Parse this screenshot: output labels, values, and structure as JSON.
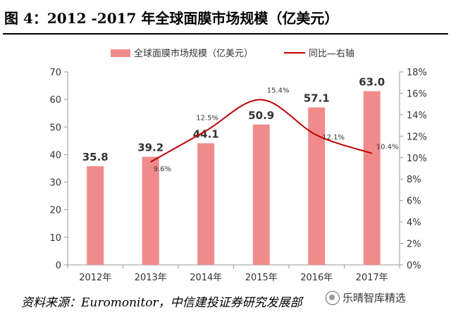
{
  "figure": {
    "title": "图 4：2012 -2017 年全球面膜市场规模（亿美元）",
    "source": "资料来源：Euromonitor，中信建投证券研究发展部",
    "watermark": "乐晴智库精选"
  },
  "chart_data": {
    "type": "bar",
    "categories": [
      "2012年",
      "2013年",
      "2014年",
      "2015年",
      "2016年",
      "2017年"
    ],
    "series": [
      {
        "name": "全球面膜市场规模（亿美元）",
        "type": "bar",
        "axis": "left",
        "color": "#f18b8b",
        "values": [
          35.8,
          39.2,
          44.1,
          50.9,
          57.1,
          63.0
        ],
        "labels": [
          "35.8",
          "39.2",
          "44.1",
          "50.9",
          "57.1",
          "63.0"
        ]
      },
      {
        "name": "同比—右轴",
        "type": "line",
        "axis": "right",
        "color": "#c00000",
        "x": [
          "2013年",
          "2014年",
          "2015年",
          "2016年",
          "2017年"
        ],
        "values": [
          9.6,
          12.5,
          15.4,
          12.1,
          10.4
        ],
        "labels": [
          "9.6%",
          "12.5%",
          "15.4%",
          "12.1%",
          "10.4%"
        ]
      }
    ],
    "ylim_left": [
      0,
      70
    ],
    "yticks_left": [
      "0",
      "10",
      "20",
      "30",
      "40",
      "50",
      "60",
      "70"
    ],
    "ylim_right": [
      0,
      18
    ],
    "yticks_right": [
      "0%",
      "2%",
      "4%",
      "6%",
      "8%",
      "10%",
      "12%",
      "14%",
      "16%",
      "18%"
    ],
    "legend_position": "top",
    "grid": false
  }
}
